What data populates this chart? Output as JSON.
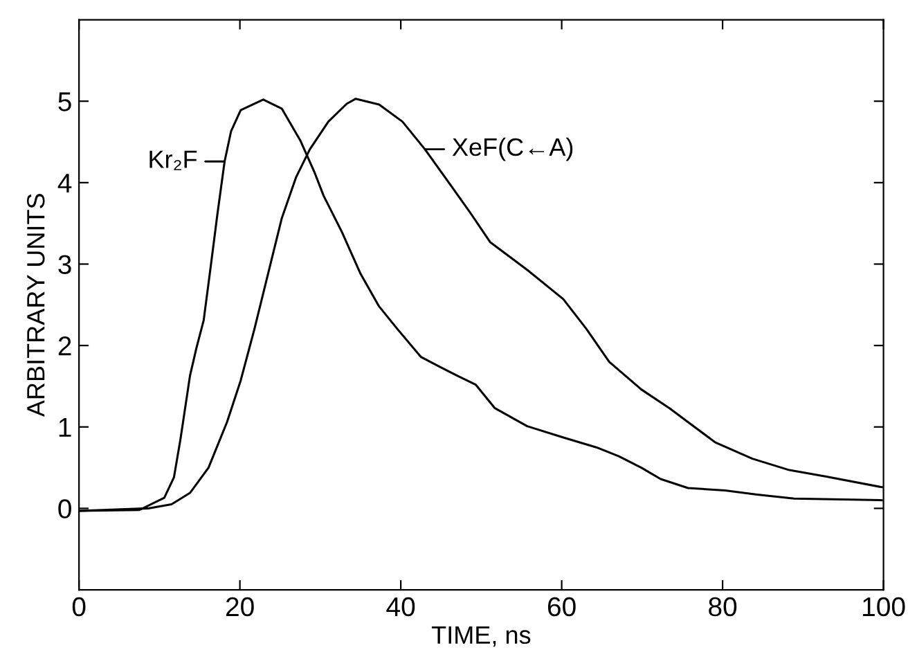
{
  "chart_data": {
    "type": "line",
    "xlabel": "TIME, ns",
    "ylabel": "ARBITRARY UNITS",
    "xlim": [
      0,
      100
    ],
    "xticks": [
      0,
      20,
      40,
      60,
      80,
      100
    ],
    "ylim": [
      -1,
      6
    ],
    "yticks": [
      0,
      1,
      2,
      3,
      4,
      5
    ],
    "grid": false,
    "legend": false,
    "marker": "none",
    "line_style": "solid",
    "series": [
      {
        "color": "#000000",
        "x": [
          0,
          7.5,
          10.6,
          11.8,
          12.6,
          13.8,
          14.6,
          15.5,
          16.4,
          17.2,
          18.1,
          18.9,
          20.1,
          22.9,
          25.2,
          27.5,
          29.3,
          30.4,
          32.7,
          35.0,
          37.3,
          39.6,
          42.5,
          44.8,
          47.0,
          49.3,
          51.7,
          55.7,
          60.2,
          64.3,
          67.1,
          69.9,
          72.3,
          75.7,
          80.3,
          84.3,
          88.9,
          99.8
        ],
        "values": [
          -0.03,
          -0.02,
          0.13,
          0.38,
          0.84,
          1.63,
          1.97,
          2.31,
          2.99,
          3.61,
          4.26,
          4.63,
          4.89,
          5.02,
          4.91,
          4.52,
          4.12,
          3.84,
          3.39,
          2.88,
          2.48,
          2.2,
          1.86,
          1.74,
          1.63,
          1.52,
          1.23,
          1.01,
          0.87,
          0.75,
          0.64,
          0.5,
          0.36,
          0.25,
          0.22,
          0.17,
          0.12,
          0.1
        ]
      },
      {
        "color": "#000000",
        "x": [
          0,
          8.6,
          11.5,
          13.8,
          16.1,
          18.4,
          20.1,
          21.8,
          23.5,
          25.2,
          27.0,
          28.7,
          31.0,
          33.3,
          34.4,
          37.3,
          40.2,
          43.0,
          45.9,
          48.5,
          51.1,
          55.7,
          60.2,
          63.1,
          65.9,
          69.9,
          73.4,
          75.7,
          79.1,
          83.7,
          88.3,
          92.9,
          99.8
        ],
        "values": [
          -0.03,
          0,
          0.05,
          0.19,
          0.5,
          1.06,
          1.57,
          2.2,
          2.88,
          3.56,
          4.07,
          4.41,
          4.75,
          4.97,
          5.03,
          4.96,
          4.75,
          4.41,
          4.01,
          3.65,
          3.27,
          2.93,
          2.57,
          2.2,
          1.8,
          1.46,
          1.23,
          1.06,
          0.81,
          0.61,
          0.47,
          0.39,
          0.26
        ]
      }
    ],
    "annotations": [
      {
        "text": "Kr₂F",
        "x": 18.1,
        "y": 4.26
      },
      {
        "text": "XeF(C←A)",
        "x": 43.0,
        "y": 4.41
      }
    ]
  }
}
